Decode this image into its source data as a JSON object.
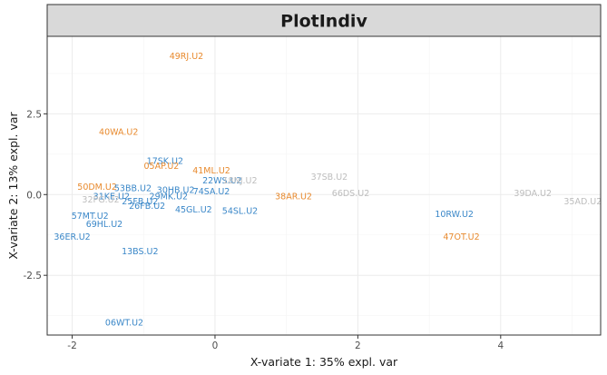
{
  "chart_data": {
    "type": "scatter",
    "title": "PlotIndiv",
    "xlabel": "X-variate 1: 35% expl. var",
    "ylabel": "X-variate 2: 13% expl. var",
    "xlim": [
      -2.35,
      5.4
    ],
    "ylim": [
      -4.35,
      4.9
    ],
    "x_ticks": [
      -2,
      0,
      2,
      4
    ],
    "y_ticks": [
      -2.5,
      0.0,
      2.5
    ],
    "x_tick_labels": [
      "-2",
      "0",
      "2",
      "4"
    ],
    "y_tick_labels": [
      "-2.5",
      "0.0",
      "2.5"
    ],
    "grid": true,
    "legend": "none",
    "colors": {
      "orange": "#e88a2e",
      "blue": "#3a87c8",
      "grey": "#bdbdbd",
      "strip": "#d9d9d9",
      "grid": "#ebebeb"
    },
    "points": [
      {
        "label": "49RJ.U2",
        "x": -0.4,
        "y": 4.3,
        "group": "orange"
      },
      {
        "label": "40WA.U2",
        "x": -1.35,
        "y": 1.95,
        "group": "orange"
      },
      {
        "label": "17SK.U2",
        "x": -0.7,
        "y": 1.05,
        "group": "blue"
      },
      {
        "label": "05AP.U2",
        "x": -0.75,
        "y": 0.9,
        "group": "orange"
      },
      {
        "label": "41ML.U2",
        "x": -0.05,
        "y": 0.75,
        "group": "orange"
      },
      {
        "label": "22WS.U2",
        "x": 0.1,
        "y": 0.45,
        "group": "blue"
      },
      {
        "label": "18NJ.U2",
        "x": 0.35,
        "y": 0.45,
        "group": "grey"
      },
      {
        "label": "37SB.U2",
        "x": 1.6,
        "y": 0.55,
        "group": "grey"
      },
      {
        "label": "50DM.U2",
        "x": -1.65,
        "y": 0.25,
        "group": "orange"
      },
      {
        "label": "53BB.U2",
        "x": -1.15,
        "y": 0.2,
        "group": "blue"
      },
      {
        "label": "30HB.U2",
        "x": -0.55,
        "y": 0.15,
        "group": "blue"
      },
      {
        "label": "74SA.U2",
        "x": -0.05,
        "y": 0.1,
        "group": "blue"
      },
      {
        "label": "31KE.U2",
        "x": -1.45,
        "y": -0.05,
        "group": "blue"
      },
      {
        "label": "32PG.U2",
        "x": -1.6,
        "y": -0.15,
        "group": "grey"
      },
      {
        "label": "29MK.U2",
        "x": -0.65,
        "y": -0.05,
        "group": "blue"
      },
      {
        "label": "25FB.U2",
        "x": -1.05,
        "y": -0.2,
        "group": "blue"
      },
      {
        "label": "26FB.U2",
        "x": -0.95,
        "y": -0.35,
        "group": "blue"
      },
      {
        "label": "38AR.U2",
        "x": 1.1,
        "y": -0.05,
        "group": "orange"
      },
      {
        "label": "66DS.U2",
        "x": 1.9,
        "y": 0.05,
        "group": "grey"
      },
      {
        "label": "39DA.U2",
        "x": 4.45,
        "y": 0.05,
        "group": "grey"
      },
      {
        "label": "35AD.U2",
        "x": 5.15,
        "y": -0.2,
        "group": "grey"
      },
      {
        "label": "45GL.U2",
        "x": -0.3,
        "y": -0.45,
        "group": "blue"
      },
      {
        "label": "54SL.U2",
        "x": 0.35,
        "y": -0.5,
        "group": "blue"
      },
      {
        "label": "10RW.U2",
        "x": 3.35,
        "y": -0.6,
        "group": "blue"
      },
      {
        "label": "57MT.U2",
        "x": -1.75,
        "y": -0.65,
        "group": "blue"
      },
      {
        "label": "69HL.U2",
        "x": -1.55,
        "y": -0.9,
        "group": "blue"
      },
      {
        "label": "36ER.U2",
        "x": -2.0,
        "y": -1.3,
        "group": "blue"
      },
      {
        "label": "47OT.U2",
        "x": 3.45,
        "y": -1.3,
        "group": "orange"
      },
      {
        "label": "13BS.U2",
        "x": -1.05,
        "y": -1.75,
        "group": "blue"
      },
      {
        "label": "06WT.U2",
        "x": -1.27,
        "y": -3.95,
        "group": "blue"
      }
    ]
  }
}
